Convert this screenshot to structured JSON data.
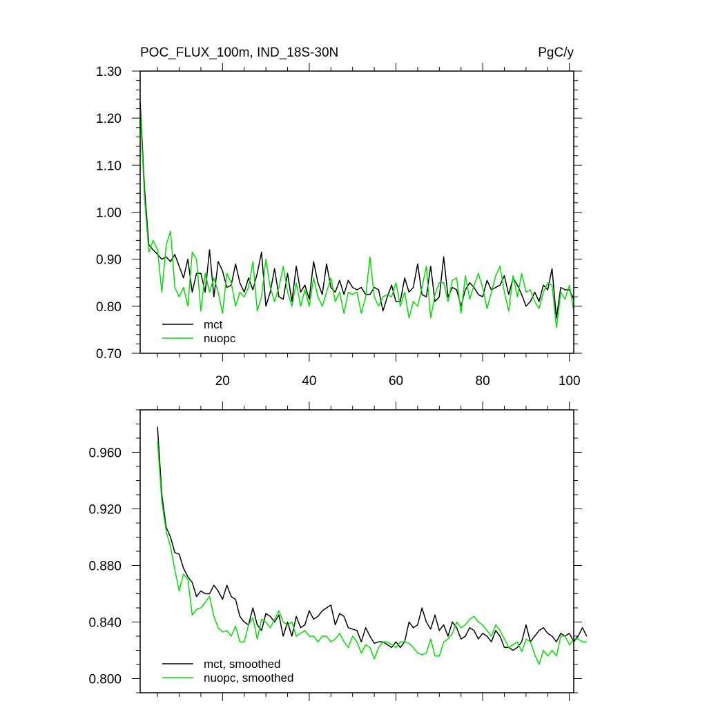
{
  "chart_data": [
    {
      "type": "line",
      "title": "POC_FLUX_100m, IND_18S-30N",
      "units": "PgC/y",
      "xlabel": "",
      "ylabel": "",
      "xlim": [
        1,
        101
      ],
      "ylim": [
        0.7,
        1.3
      ],
      "xticks": [
        20,
        40,
        60,
        80,
        100
      ],
      "yticks": [
        0.7,
        0.8,
        0.9,
        1.0,
        1.1,
        1.2,
        1.3
      ],
      "ytick_labels": [
        "0.70",
        "0.80",
        "0.90",
        "1.00",
        "1.10",
        "1.20",
        "1.30"
      ],
      "xtick_labels": [
        "20",
        "40",
        "60",
        "80",
        "100"
      ],
      "legend": {
        "placement": "bottom-left",
        "entries": [
          "mct",
          "nuopc"
        ]
      },
      "x_start": 1,
      "series": [
        {
          "name": "mct",
          "color": "#000000",
          "values": [
            1.235,
            1.05,
            0.93,
            0.92,
            0.91,
            0.9,
            0.905,
            0.895,
            0.91,
            0.885,
            0.86,
            0.9,
            0.83,
            0.87,
            0.87,
            0.83,
            0.92,
            0.82,
            0.895,
            0.875,
            0.84,
            0.845,
            0.89,
            0.85,
            0.83,
            0.86,
            0.835,
            0.87,
            0.915,
            0.8,
            0.83,
            0.88,
            0.82,
            0.815,
            0.87,
            0.81,
            0.885,
            0.83,
            0.845,
            0.815,
            0.895,
            0.85,
            0.825,
            0.89,
            0.84,
            0.83,
            0.855,
            0.825,
            0.855,
            0.84,
            0.835,
            0.84,
            0.825,
            0.825,
            0.84,
            0.835,
            0.79,
            0.82,
            0.845,
            0.81,
            0.81,
            0.86,
            0.83,
            0.84,
            0.89,
            0.825,
            0.82,
            0.885,
            0.81,
            0.82,
            0.905,
            0.82,
            0.84,
            0.835,
            0.8,
            0.835,
            0.85,
            0.84,
            0.825,
            0.82,
            0.855,
            0.835,
            0.84,
            0.845,
            0.865,
            0.825,
            0.86,
            0.845,
            0.825,
            0.8,
            0.81,
            0.83,
            0.81,
            0.845,
            0.835,
            0.88,
            0.775,
            0.84,
            0.835,
            0.835,
            0.815
          ]
        },
        {
          "name": "nuopc",
          "color": "#00e000",
          "values": [
            1.22,
            1.03,
            0.915,
            0.94,
            0.92,
            0.83,
            0.93,
            0.96,
            0.84,
            0.82,
            0.84,
            0.8,
            0.915,
            0.9,
            0.79,
            0.87,
            0.83,
            0.86,
            0.83,
            0.785,
            0.87,
            0.85,
            0.8,
            0.83,
            0.82,
            0.84,
            0.895,
            0.79,
            0.82,
            0.9,
            0.84,
            0.81,
            0.84,
            0.885,
            0.83,
            0.8,
            0.85,
            0.8,
            0.835,
            0.8,
            0.86,
            0.82,
            0.8,
            0.83,
            0.86,
            0.81,
            0.83,
            0.785,
            0.83,
            0.825,
            0.83,
            0.785,
            0.82,
            0.905,
            0.82,
            0.8,
            0.82,
            0.825,
            0.82,
            0.85,
            0.8,
            0.83,
            0.775,
            0.81,
            0.8,
            0.84,
            0.885,
            0.775,
            0.825,
            0.85,
            0.85,
            0.81,
            0.855,
            0.86,
            0.785,
            0.865,
            0.815,
            0.845,
            0.87,
            0.84,
            0.795,
            0.83,
            0.865,
            0.885,
            0.83,
            0.79,
            0.865,
            0.82,
            0.87,
            0.83,
            0.835,
            0.81,
            0.795,
            0.83,
            0.85,
            0.845,
            0.755,
            0.83,
            0.815,
            0.845,
            0.79
          ]
        }
      ]
    },
    {
      "type": "line",
      "title": "",
      "xlabel": "",
      "ylabel": "",
      "xlim": [
        1,
        101
      ],
      "ylim": [
        0.79,
        0.99
      ],
      "yticks": [
        0.8,
        0.84,
        0.88,
        0.92,
        0.96
      ],
      "ytick_labels": [
        "0.800",
        "0.840",
        "0.880",
        "0.920",
        "0.960"
      ],
      "xticks": [
        20,
        40,
        60,
        80,
        100
      ],
      "legend": {
        "placement": "bottom-left",
        "entries": [
          "mct, smoothed",
          "nuopc, smoothed"
        ]
      },
      "x_start": 5,
      "series": [
        {
          "name": "mct, smoothed",
          "color": "#000000",
          "values": [
            0.978,
            0.93,
            0.907,
            0.9,
            0.889,
            0.888,
            0.878,
            0.872,
            0.868,
            0.858,
            0.862,
            0.86,
            0.86,
            0.866,
            0.862,
            0.856,
            0.866,
            0.858,
            0.856,
            0.844,
            0.84,
            0.838,
            0.85,
            0.838,
            0.834,
            0.846,
            0.844,
            0.84,
            0.845,
            0.83,
            0.84,
            0.83,
            0.844,
            0.836,
            0.838,
            0.848,
            0.842,
            0.844,
            0.848,
            0.85,
            0.852,
            0.838,
            0.846,
            0.844,
            0.836,
            0.835,
            0.834,
            0.826,
            0.836,
            0.83,
            0.825,
            0.826,
            0.826,
            0.824,
            0.822,
            0.826,
            0.822,
            0.826,
            0.84,
            0.836,
            0.838,
            0.85,
            0.84,
            0.835,
            0.845,
            0.834,
            0.838,
            0.83,
            0.84,
            0.836,
            0.828,
            0.83,
            0.836,
            0.834,
            0.828,
            0.832,
            0.83,
            0.826,
            0.834,
            0.83,
            0.822,
            0.822,
            0.82,
            0.822,
            0.826,
            0.838,
            0.826,
            0.83,
            0.834,
            0.836,
            0.832,
            0.83,
            0.826,
            0.832,
            0.83,
            0.832,
            0.826,
            0.83,
            0.836,
            0.83
          ]
        },
        {
          "name": "nuopc, smoothed",
          "color": "#00e000",
          "values": [
            0.968,
            0.925,
            0.904,
            0.893,
            0.877,
            0.862,
            0.874,
            0.87,
            0.845,
            0.849,
            0.85,
            0.854,
            0.858,
            0.844,
            0.836,
            0.833,
            0.834,
            0.83,
            0.837,
            0.826,
            0.826,
            0.838,
            0.843,
            0.828,
            0.842,
            0.84,
            0.836,
            0.842,
            0.848,
            0.84,
            0.838,
            0.84,
            0.83,
            0.832,
            0.834,
            0.83,
            0.83,
            0.826,
            0.83,
            0.83,
            0.826,
            0.828,
            0.832,
            0.826,
            0.822,
            0.83,
            0.826,
            0.818,
            0.824,
            0.822,
            0.814,
            0.822,
            0.826,
            0.826,
            0.824,
            0.822,
            0.826,
            0.826,
            0.825,
            0.822,
            0.818,
            0.817,
            0.818,
            0.828,
            0.816,
            0.816,
            0.826,
            0.828,
            0.832,
            0.84,
            0.836,
            0.838,
            0.842,
            0.844,
            0.84,
            0.838,
            0.834,
            0.83,
            0.838,
            0.834,
            0.828,
            0.822,
            0.824,
            0.826,
            0.819,
            0.828,
            0.826,
            0.817,
            0.81,
            0.82,
            0.816,
            0.82,
            0.816,
            0.83,
            0.83,
            0.824,
            0.828,
            0.828,
            0.826,
            0.826
          ]
        }
      ]
    }
  ]
}
